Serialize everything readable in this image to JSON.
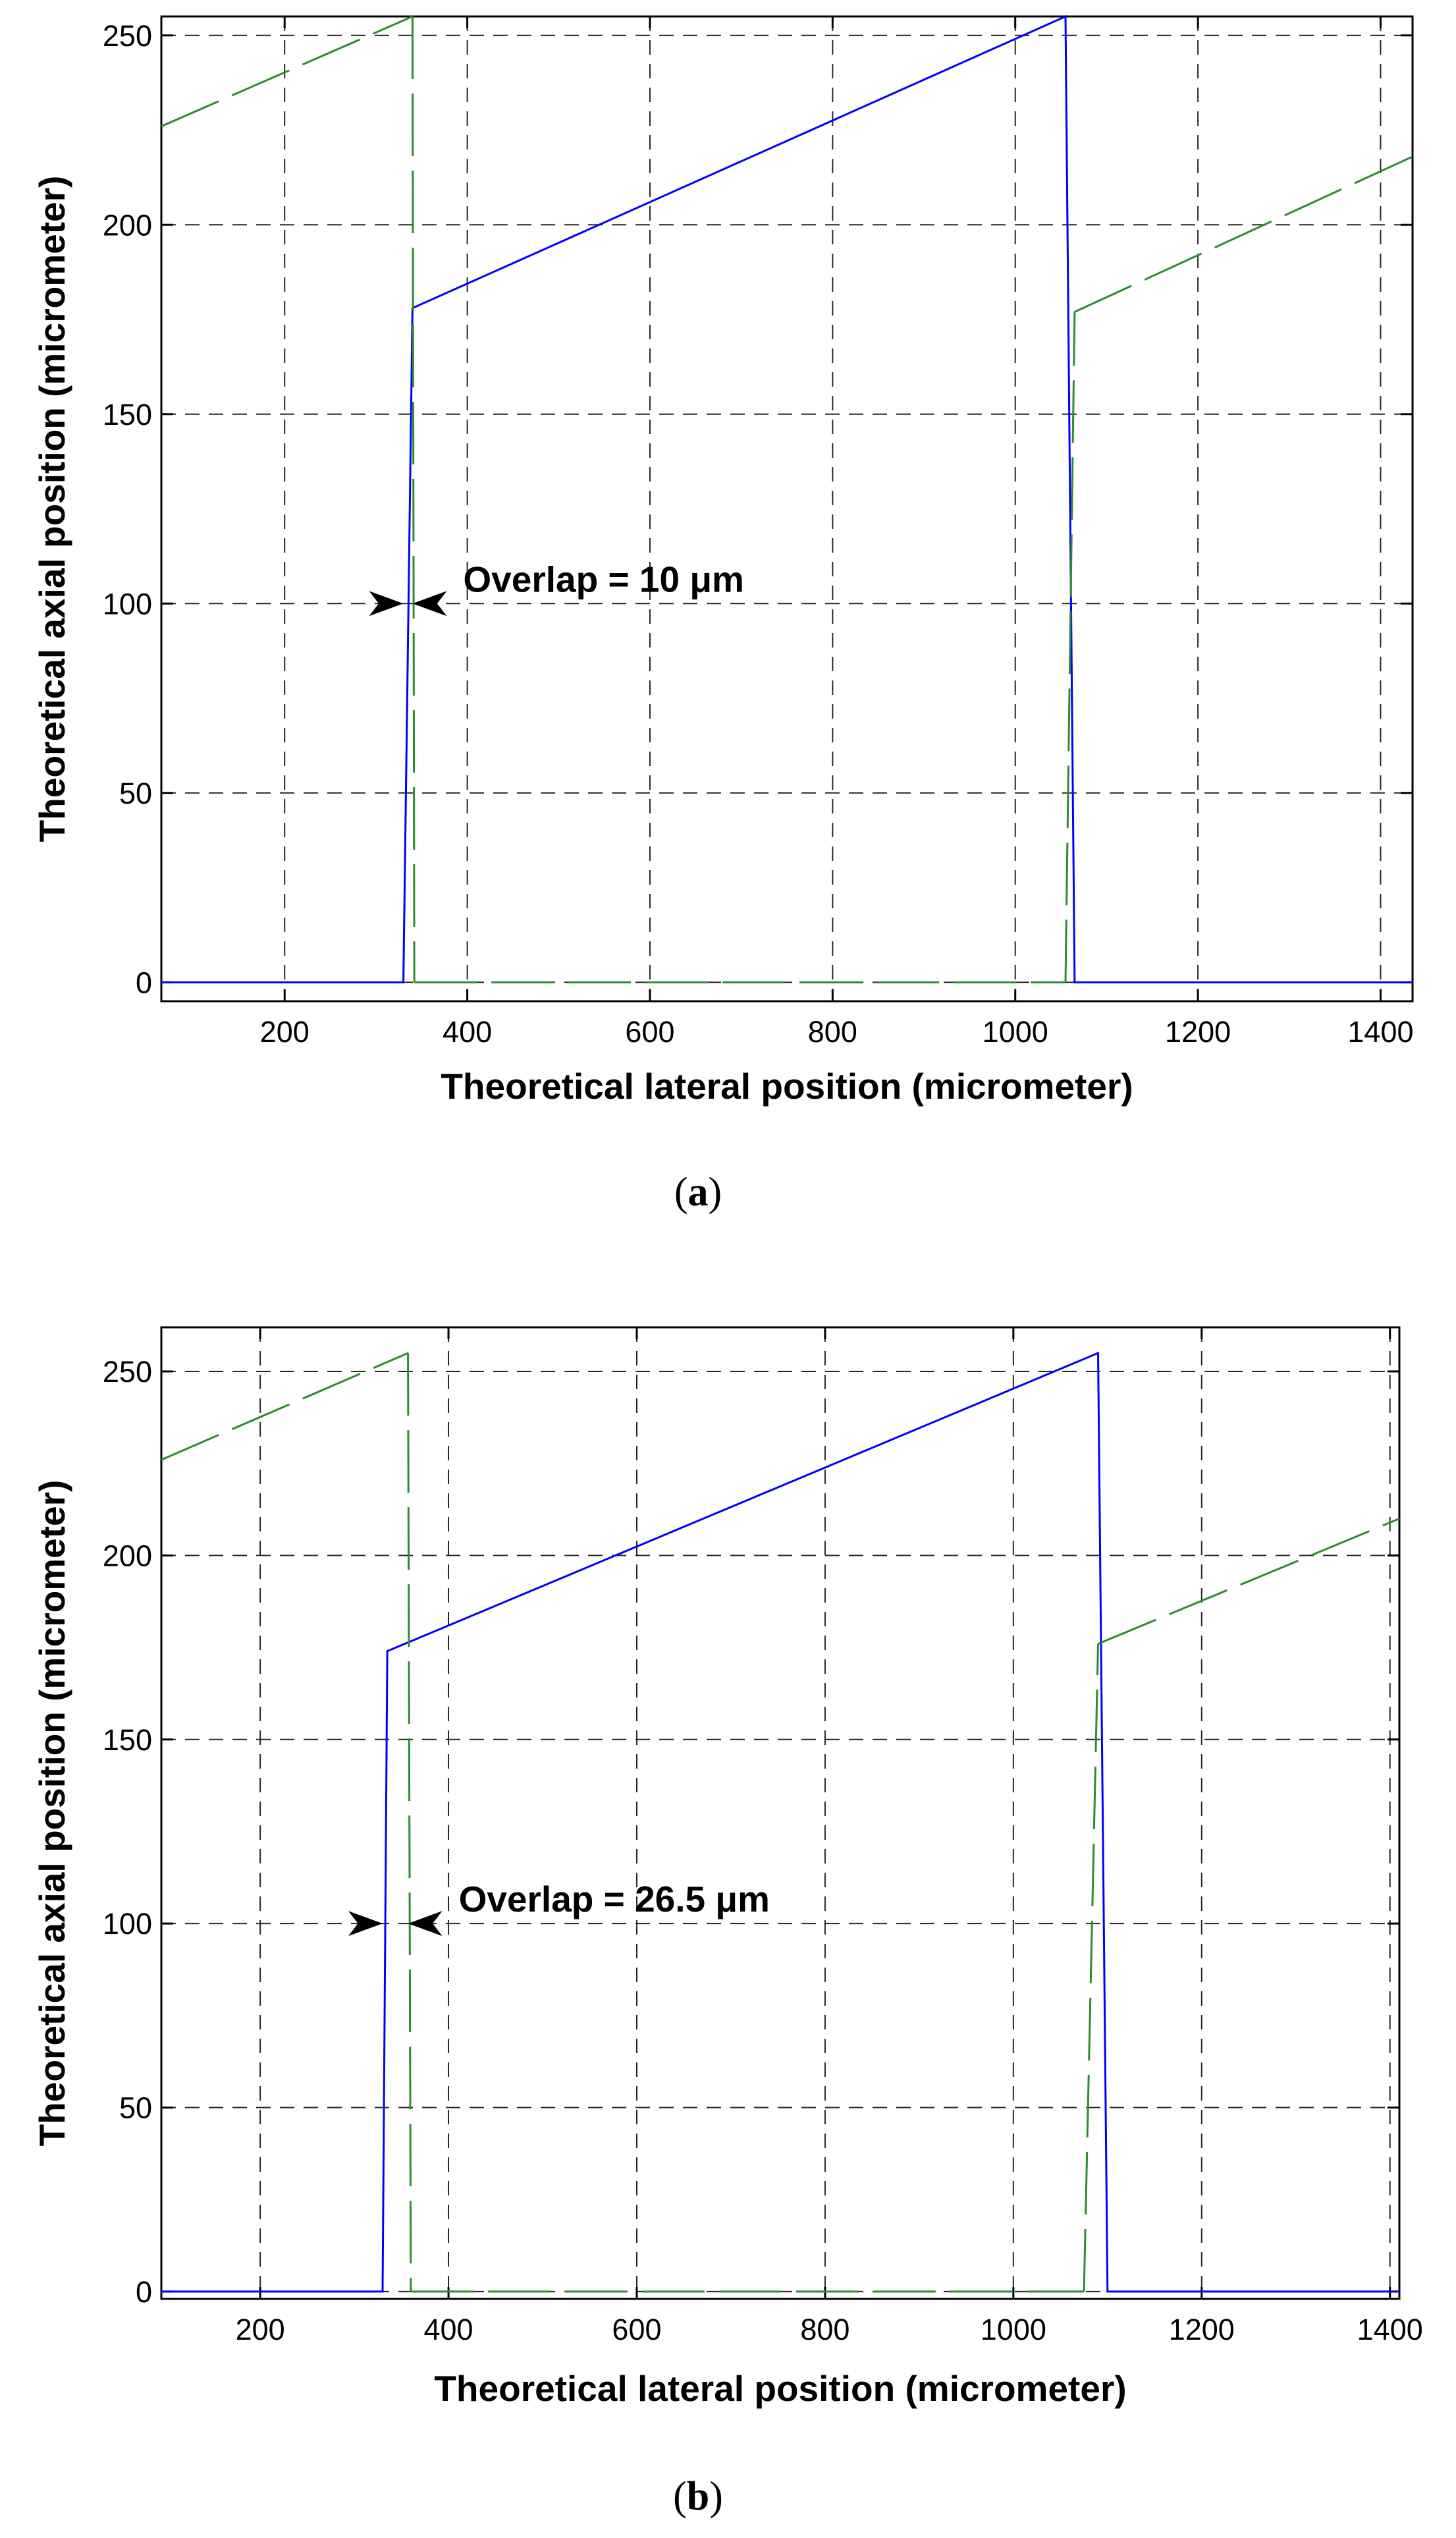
{
  "chart_data": [
    {
      "id": "a",
      "type": "line",
      "caption_letter": "a",
      "xlabel": "Theoretical lateral position (micrometer)",
      "ylabel": "Theoretical axial position (micrometer)",
      "xlim": [
        65,
        1435
      ],
      "ylim": [
        -5,
        255
      ],
      "xticks": [
        200,
        400,
        600,
        800,
        1000,
        1200,
        1400
      ],
      "yticks": [
        0,
        50,
        100,
        150,
        200,
        250
      ],
      "grid": true,
      "annotation": {
        "text": "Overlap = 10 μm",
        "y": 100,
        "x_left": 330,
        "x_right": 340
      },
      "series": [
        {
          "style": "solid",
          "color": "#0000ff",
          "x": [
            65,
            330,
            340,
            1055,
            1065,
            1435
          ],
          "y": [
            0,
            0,
            178,
            255,
            0,
            0
          ]
        },
        {
          "style": "dashed",
          "color": "#2e8b2e",
          "segments": [
            {
              "x": [
                65,
                340
              ],
              "y": [
                226,
                255
              ]
            },
            {
              "x": [
                340,
                342
              ],
              "y": [
                255,
                0
              ]
            },
            {
              "x": [
                342,
                1055
              ],
              "y": [
                0,
                0
              ]
            },
            {
              "x": [
                1055,
                1065
              ],
              "y": [
                0,
                177
              ]
            },
            {
              "x": [
                1065,
                1435
              ],
              "y": [
                177,
                218
              ]
            }
          ]
        }
      ]
    },
    {
      "id": "b",
      "type": "line",
      "caption_letter": "b",
      "xlabel": "Theoretical lateral position (micrometer)",
      "ylabel": "Theoretical axial position (micrometer)",
      "xlim": [
        95,
        1410
      ],
      "ylim": [
        -2,
        262
      ],
      "xticks": [
        200,
        400,
        600,
        800,
        1000,
        1200,
        1400
      ],
      "yticks": [
        0,
        50,
        100,
        150,
        200,
        250
      ],
      "grid": true,
      "annotation": {
        "text": "Overlap = 26.5 μm",
        "y": 100,
        "x_left": 330,
        "x_right": 357
      },
      "series": [
        {
          "style": "solid",
          "color": "#0000ff",
          "x": [
            95,
            330,
            335,
            1090,
            1100,
            1410
          ],
          "y": [
            0,
            0,
            174,
            255,
            0,
            0
          ]
        },
        {
          "style": "dashed",
          "color": "#2e8b2e",
          "segments": [
            {
              "x": [
                95,
                357
              ],
              "y": [
                226,
                255
              ]
            },
            {
              "x": [
                357,
                360
              ],
              "y": [
                255,
                0
              ]
            },
            {
              "x": [
                360,
                1075
              ],
              "y": [
                0,
                0
              ]
            },
            {
              "x": [
                1075,
                1090
              ],
              "y": [
                0,
                176
              ]
            },
            {
              "x": [
                1090,
                1410
              ],
              "y": [
                176,
                210
              ]
            }
          ]
        }
      ]
    }
  ]
}
